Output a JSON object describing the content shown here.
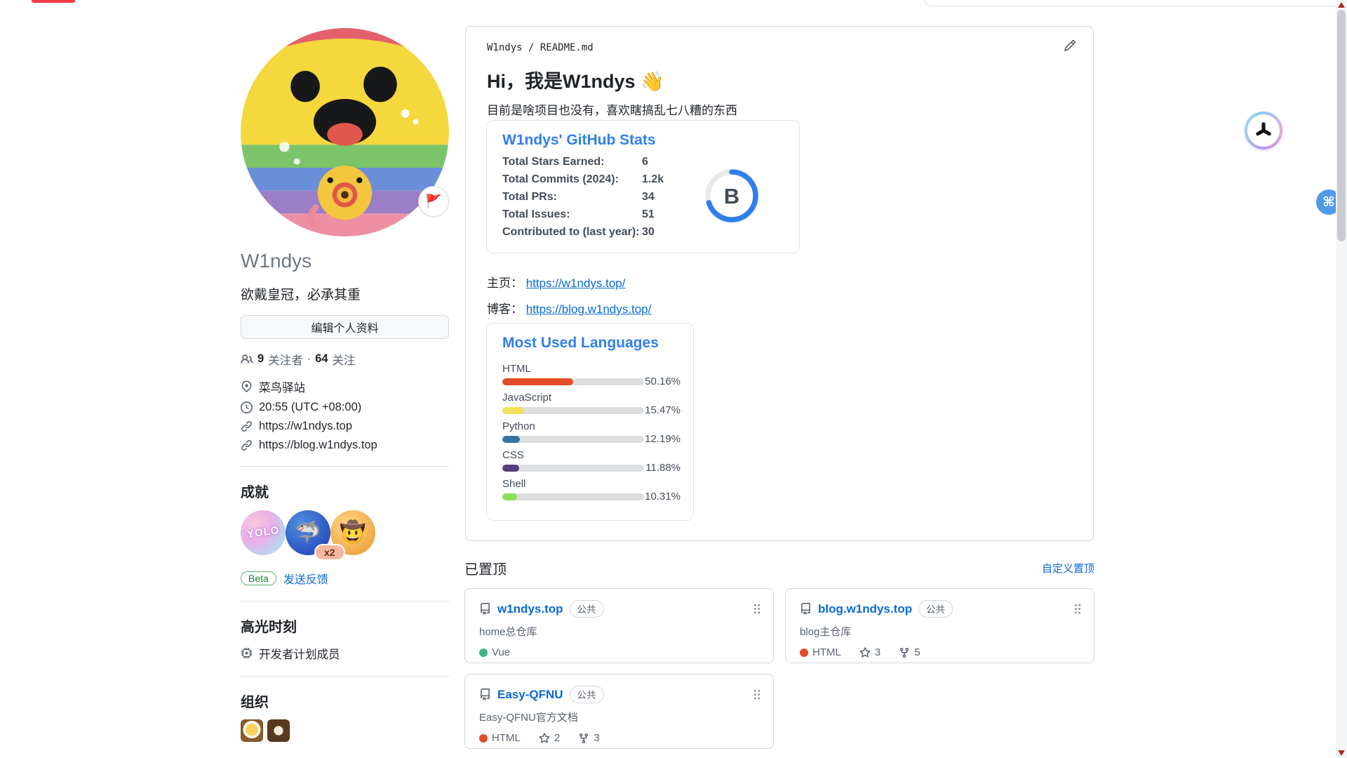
{
  "widgets": {
    "cmd_glyph": "⌘"
  },
  "profile": {
    "name": "W1ndys",
    "status_glyph": "🚩",
    "bio": "欲戴皇冠，必承其重",
    "edit_button": "编辑个人资料",
    "followers_count": "9",
    "followers_label": "关注者",
    "dot_separator": "·",
    "following_count": "64",
    "following_label": "关注",
    "location": "菜鸟驿站",
    "local_time": "20:55 (UTC +08:00)",
    "website": "https://w1ndys.top",
    "blog": "https://blog.w1ndys.top"
  },
  "achievements": {
    "heading": "成就",
    "badges": [
      {
        "name": "yolo",
        "glyph": "YOLO"
      },
      {
        "name": "pull-shark",
        "glyph": "🦈",
        "multiplier": "x2"
      },
      {
        "name": "quickdraw",
        "glyph": "🤠"
      }
    ],
    "beta_label": "Beta",
    "feedback_link": "发送反馈"
  },
  "highlights": {
    "heading": "高光时刻",
    "developer_program": "开发者计划成员"
  },
  "organizations": {
    "heading": "组织"
  },
  "readme": {
    "path": "W1ndys / README.md",
    "title": "Hi，我是W1ndys",
    "wave_emoji": "👋",
    "intro": "目前是啥项目也没有，喜欢瞎搞乱七八糟的东西",
    "homepage_label": "主页：",
    "homepage_url": "https://w1ndys.top/",
    "blog_label": "博客：",
    "blog_url": "https://blog.w1ndys.top/"
  },
  "stats_card": {
    "title": "W1ndys' GitHub Stats",
    "rank_letter": "B",
    "accent": "#2f80ed",
    "rows": [
      {
        "label": "Total Stars Earned:",
        "value": "6"
      },
      {
        "label": "Total Commits (2024):",
        "value": "1.2k"
      },
      {
        "label": "Total PRs:",
        "value": "34"
      },
      {
        "label": "Total Issues:",
        "value": "51"
      },
      {
        "label": "Contributed to (last year):",
        "value": "30"
      }
    ]
  },
  "languages_card": {
    "title": "Most Used Languages",
    "items": [
      {
        "name": "HTML",
        "pct": "50.16%",
        "value": 50.16,
        "color": "#e34c26"
      },
      {
        "name": "JavaScript",
        "pct": "15.47%",
        "value": 15.47,
        "color": "#f1e05a"
      },
      {
        "name": "Python",
        "pct": "12.19%",
        "value": 12.19,
        "color": "#3572a5"
      },
      {
        "name": "CSS",
        "pct": "11.88%",
        "value": 11.88,
        "color": "#563d7c"
      },
      {
        "name": "Shell",
        "pct": "10.31%",
        "value": 10.31,
        "color": "#89e051"
      }
    ]
  },
  "pinned": {
    "heading": "已置顶",
    "customize_link": "自定义置顶",
    "repos": [
      {
        "name": "w1ndys.top",
        "visibility": "公共",
        "description": "home总仓库",
        "language": "Vue",
        "language_color": "#41b883",
        "stars": "",
        "forks": ""
      },
      {
        "name": "blog.w1ndys.top",
        "visibility": "公共",
        "description": "blog主仓库",
        "language": "HTML",
        "language_color": "#e34c26",
        "stars": "3",
        "forks": "5"
      },
      {
        "name": "Easy-QFNU",
        "visibility": "公共",
        "description": "Easy-QFNU官方文档",
        "language": "HTML",
        "language_color": "#e34c26",
        "stars": "2",
        "forks": "3"
      }
    ]
  }
}
